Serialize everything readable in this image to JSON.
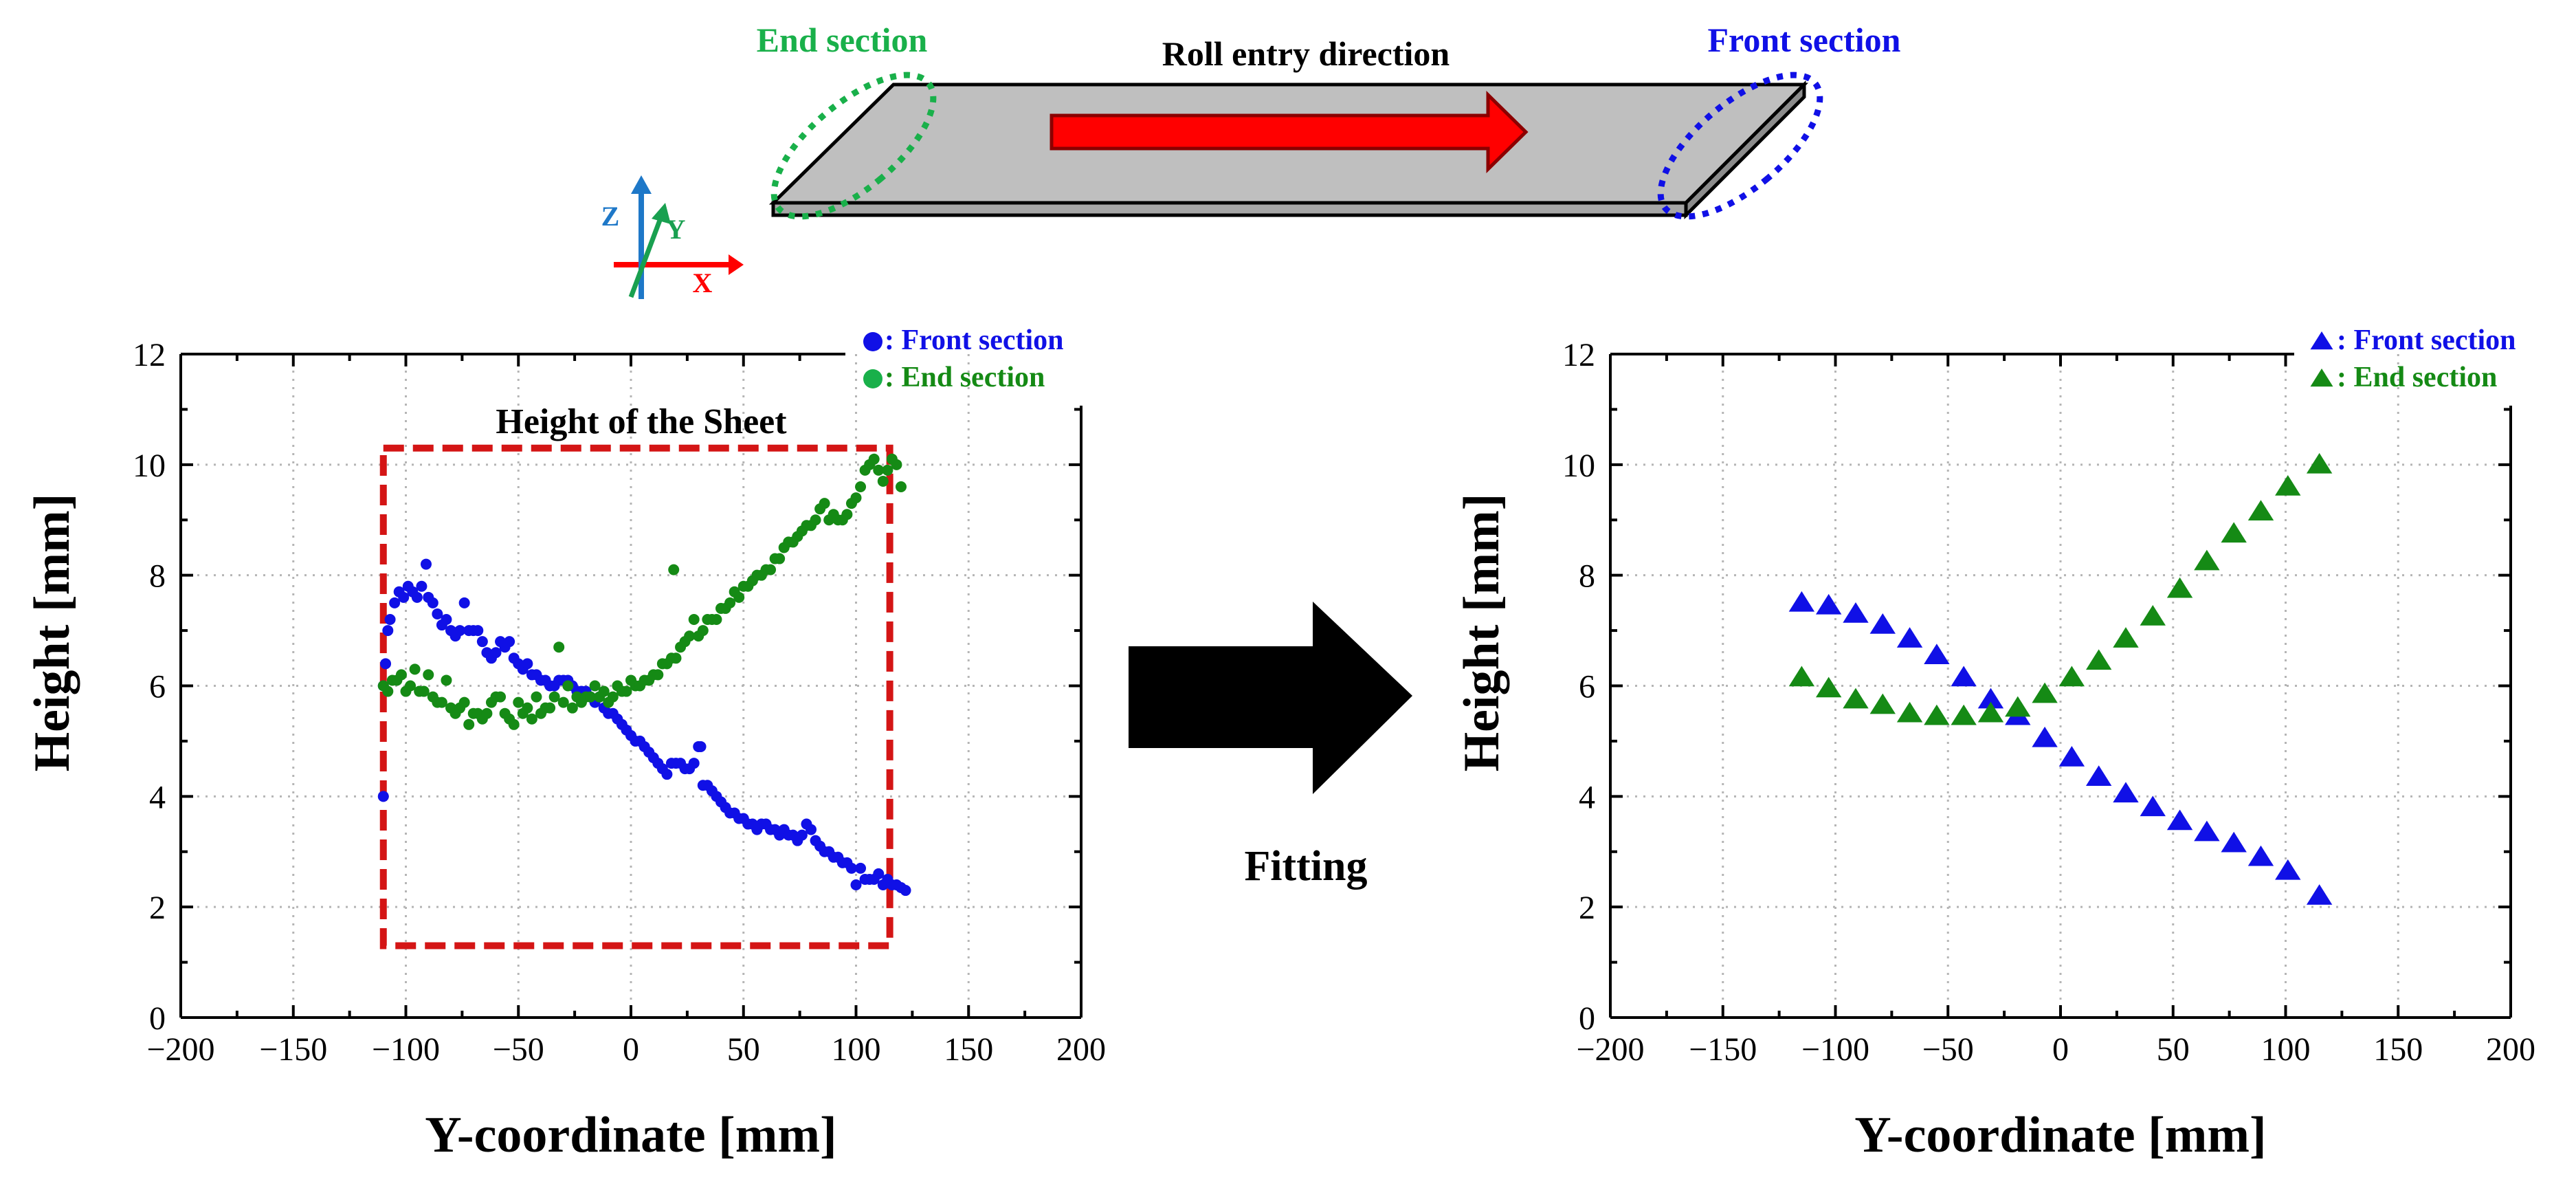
{
  "colors": {
    "front": "#1010e6",
    "end": "#158a15",
    "end_label": "#19b04a",
    "frame": "#d41515",
    "arrow_red": "#ff0000",
    "sheet": "#bfbfbf",
    "axis_z": "#1e78c8",
    "axis_y": "#19a050",
    "axis_x": "#ff0000"
  },
  "schematic": {
    "end_section_label": "End section",
    "front_section_label": "Front section",
    "direction_label": "Roll entry direction",
    "axis_z": "Z",
    "axis_y": "Y",
    "axis_x": "X"
  },
  "transition": {
    "label": "Fitting",
    "icon": "right-arrow-icon"
  },
  "chart_data": [
    {
      "type": "scatter",
      "title": "",
      "annotation": "Height of the Sheet",
      "annotation_frame_x": [
        -110,
        115
      ],
      "annotation_frame_y": [
        1.3,
        10.3
      ],
      "xlabel": "Y-coordinate [mm]",
      "ylabel": "Height [mm]",
      "xlim": [
        -200,
        200
      ],
      "ylim": [
        0,
        12
      ],
      "xticks": [
        -200,
        -150,
        -100,
        -50,
        0,
        50,
        100,
        150,
        200
      ],
      "yticks": [
        0,
        2,
        4,
        6,
        8,
        10,
        12
      ],
      "xtick_labels": [
        "−200",
        "−150",
        "−100",
        "−50",
        "0",
        "50",
        "100",
        "150",
        "200"
      ],
      "ytick_labels": [
        "0",
        "2",
        "4",
        "6",
        "8",
        "10",
        "12"
      ],
      "grid": true,
      "legend_position": "top-right",
      "series": [
        {
          "name": "Front section",
          "legend_label": ": Front section",
          "marker": "circle",
          "color": "#1010e6",
          "x": [
            -110,
            -110,
            -109,
            -108,
            -107,
            -105,
            -103,
            -101,
            -99,
            -97,
            -95,
            -93,
            -91,
            -90,
            -88,
            -86,
            -84,
            -82,
            -80,
            -78,
            -76,
            -74,
            -72,
            -70,
            -68,
            -66,
            -64,
            -62,
            -60,
            -58,
            -56,
            -54,
            -52,
            -50,
            -48,
            -46,
            -44,
            -42,
            -40,
            -38,
            -36,
            -34,
            -32,
            -30,
            -28,
            -26,
            -24,
            -22,
            -20,
            -18,
            -16,
            -14,
            -12,
            -10,
            -8,
            -6,
            -4,
            -2,
            0,
            2,
            4,
            6,
            8,
            10,
            12,
            14,
            16,
            18,
            20,
            22,
            24,
            26,
            28,
            30,
            31,
            32,
            34,
            36,
            38,
            40,
            42,
            44,
            46,
            48,
            50,
            52,
            54,
            56,
            58,
            60,
            62,
            64,
            66,
            68,
            70,
            72,
            74,
            76,
            78,
            80,
            82,
            84,
            86,
            88,
            90,
            92,
            94,
            96,
            98,
            100,
            102,
            104,
            106,
            108,
            110,
            112,
            114,
            116,
            118,
            120,
            122
          ],
          "y": [
            4.0,
            6.0,
            6.4,
            7.0,
            7.2,
            7.5,
            7.7,
            7.6,
            7.8,
            7.7,
            7.6,
            7.8,
            8.2,
            7.6,
            7.5,
            7.3,
            7.1,
            7.2,
            7.0,
            6.9,
            7.0,
            7.5,
            7.0,
            7.0,
            7.0,
            6.8,
            6.6,
            6.5,
            6.6,
            6.8,
            6.7,
            6.8,
            6.5,
            6.4,
            6.3,
            6.4,
            6.2,
            6.2,
            6.1,
            6.1,
            6.0,
            6.0,
            6.1,
            6.1,
            6.1,
            6.0,
            5.9,
            5.9,
            5.9,
            5.8,
            5.7,
            5.8,
            5.6,
            5.5,
            5.5,
            5.4,
            5.3,
            5.2,
            5.1,
            5.0,
            5.0,
            4.9,
            4.8,
            4.7,
            4.6,
            4.5,
            4.4,
            4.6,
            4.6,
            4.6,
            4.5,
            4.5,
            4.6,
            4.9,
            4.9,
            4.2,
            4.2,
            4.1,
            4.0,
            3.9,
            3.8,
            3.7,
            3.7,
            3.6,
            3.6,
            3.5,
            3.5,
            3.4,
            3.5,
            3.5,
            3.4,
            3.4,
            3.3,
            3.4,
            3.3,
            3.3,
            3.2,
            3.3,
            3.5,
            3.4,
            3.2,
            3.1,
            3.0,
            3.0,
            2.9,
            2.9,
            2.8,
            2.8,
            2.7,
            2.4,
            2.7,
            2.5,
            2.5,
            2.5,
            2.6,
            2.4,
            2.5,
            2.4,
            2.4,
            2.35,
            2.3
          ]
        },
        {
          "name": "End section",
          "legend_label": " : End section",
          "marker": "circle",
          "color": "#158a15",
          "x": [
            -110,
            -108,
            -106,
            -104,
            -102,
            -100,
            -98,
            -96,
            -94,
            -92,
            -90,
            -88,
            -86,
            -84,
            -82,
            -80,
            -78,
            -76,
            -74,
            -72,
            -70,
            -68,
            -66,
            -64,
            -62,
            -60,
            -58,
            -56,
            -54,
            -52,
            -50,
            -48,
            -46,
            -44,
            -42,
            -40,
            -38,
            -36,
            -34,
            -32,
            -30,
            -28,
            -26,
            -24,
            -22,
            -20,
            -18,
            -16,
            -14,
            -12,
            -10,
            -8,
            -6,
            -4,
            -2,
            0,
            2,
            4,
            6,
            8,
            10,
            12,
            14,
            16,
            18,
            19,
            20,
            22,
            24,
            26,
            28,
            30,
            32,
            34,
            36,
            38,
            40,
            42,
            44,
            46,
            48,
            50,
            52,
            54,
            56,
            58,
            60,
            62,
            64,
            66,
            68,
            70,
            72,
            74,
            76,
            78,
            80,
            82,
            84,
            86,
            88,
            90,
            92,
            94,
            96,
            98,
            100,
            102,
            104,
            106,
            108,
            110,
            112,
            114,
            116,
            118,
            120
          ],
          "y": [
            6.0,
            5.9,
            6.1,
            6.1,
            6.2,
            5.9,
            6.0,
            6.3,
            5.9,
            5.9,
            6.2,
            5.8,
            5.7,
            5.7,
            6.1,
            5.6,
            5.5,
            5.6,
            5.7,
            5.3,
            5.5,
            5.5,
            5.4,
            5.5,
            5.7,
            5.8,
            5.8,
            5.5,
            5.4,
            5.3,
            5.7,
            5.5,
            5.6,
            5.4,
            5.8,
            5.5,
            5.6,
            5.6,
            5.8,
            6.7,
            5.7,
            6.0,
            5.6,
            5.8,
            5.7,
            5.8,
            5.8,
            6.0,
            5.8,
            5.9,
            5.7,
            5.8,
            6.0,
            5.9,
            5.9,
            6.1,
            6.0,
            6.0,
            6.1,
            6.1,
            6.2,
            6.2,
            6.4,
            6.4,
            6.5,
            8.1,
            6.5,
            6.7,
            6.8,
            6.9,
            7.2,
            6.9,
            7.0,
            7.2,
            7.2,
            7.2,
            7.4,
            7.4,
            7.5,
            7.7,
            7.6,
            7.8,
            7.8,
            7.9,
            8.0,
            8.0,
            8.1,
            8.1,
            8.3,
            8.3,
            8.5,
            8.6,
            8.6,
            8.7,
            8.8,
            8.9,
            8.9,
            9.0,
            9.2,
            9.3,
            9.0,
            9.1,
            9.0,
            9.0,
            9.1,
            9.3,
            9.4,
            9.6,
            9.9,
            10.0,
            10.1,
            9.9,
            9.7,
            9.9,
            10.1,
            10.0,
            9.6
          ]
        }
      ]
    },
    {
      "type": "scatter",
      "title": "",
      "xlabel": "Y-coordinate [mm]",
      "ylabel": "Height [mm]",
      "xlim": [
        -200,
        200
      ],
      "ylim": [
        0,
        12
      ],
      "xticks": [
        -200,
        -150,
        -100,
        -50,
        0,
        50,
        100,
        150,
        200
      ],
      "yticks": [
        0,
        2,
        4,
        6,
        8,
        10,
        12
      ],
      "xtick_labels": [
        "−200",
        "−150",
        "−100",
        "−50",
        "0",
        "50",
        "100",
        "150",
        "200"
      ],
      "ytick_labels": [
        "0",
        "2",
        "4",
        "6",
        "8",
        "10",
        "12"
      ],
      "grid": true,
      "legend_position": "top-right",
      "series": [
        {
          "name": "Front section",
          "legend_label": ": Front section",
          "marker": "triangle",
          "color": "#1010e6",
          "x": [
            -115,
            -103,
            -91,
            -79,
            -67,
            -55,
            -43,
            -31,
            -19,
            -7,
            5,
            17,
            29,
            41,
            53,
            65,
            77,
            89,
            101,
            115
          ],
          "y": [
            7.5,
            7.45,
            7.3,
            7.1,
            6.85,
            6.55,
            6.15,
            5.75,
            5.45,
            5.05,
            4.7,
            4.35,
            4.05,
            3.8,
            3.55,
            3.35,
            3.15,
            2.9,
            2.65,
            2.2
          ]
        },
        {
          "name": "End section",
          "legend_label": ": End section",
          "marker": "triangle",
          "color": "#158a15",
          "x": [
            -115,
            -103,
            -91,
            -79,
            -67,
            -55,
            -43,
            -31,
            -19,
            -7,
            5,
            17,
            29,
            41,
            53,
            65,
            77,
            89,
            101,
            115
          ],
          "y": [
            6.15,
            5.95,
            5.75,
            5.65,
            5.5,
            5.45,
            5.45,
            5.5,
            5.6,
            5.85,
            6.15,
            6.45,
            6.85,
            7.25,
            7.75,
            8.25,
            8.75,
            9.15,
            9.6,
            10.0
          ]
        }
      ]
    }
  ]
}
